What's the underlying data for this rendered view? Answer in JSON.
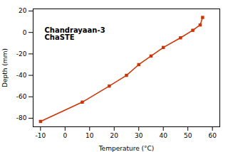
{
  "chart_data": {
    "type": "line",
    "xlabel": "Temperature (°C)",
    "ylabel": "Depth (mm)",
    "annotations": [
      "Chandrayaan-3",
      "ChaSTE"
    ],
    "x": [
      -10,
      7,
      18,
      25,
      30,
      35,
      40,
      47,
      52,
      55,
      56
    ],
    "series": [
      {
        "values": [
          -83,
          -65,
          -50,
          -40,
          -30,
          -22,
          -14,
          -5,
          2,
          7,
          14
        ],
        "color": "#cc3300",
        "marker": "square"
      }
    ],
    "xlim": [
      -13,
      63
    ],
    "ylim": [
      -88,
      22
    ],
    "xticks": [
      -10,
      0,
      10,
      20,
      30,
      40,
      50,
      60
    ],
    "yticks": [
      -80,
      -60,
      -40,
      -20,
      0,
      20
    ]
  }
}
